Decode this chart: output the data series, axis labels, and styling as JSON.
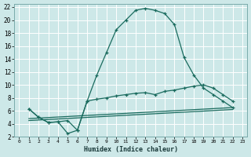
{
  "xlabel": "Humidex (Indice chaleur)",
  "bg_color": "#cde8e8",
  "grid_color": "#ffffff",
  "line_color": "#1a6b5e",
  "xlim": [
    -0.5,
    23.5
  ],
  "ylim": [
    2,
    22.5
  ],
  "xticks": [
    0,
    1,
    2,
    3,
    4,
    5,
    6,
    7,
    8,
    9,
    10,
    11,
    12,
    13,
    14,
    15,
    16,
    17,
    18,
    19,
    20,
    21,
    22,
    23
  ],
  "yticks": [
    2,
    4,
    6,
    8,
    10,
    12,
    14,
    16,
    18,
    20,
    22
  ],
  "line1_x": [
    1,
    2,
    3,
    4,
    5,
    6,
    7,
    8,
    9,
    10,
    11,
    12,
    13,
    14,
    15,
    16,
    17,
    18,
    19,
    20,
    21,
    22
  ],
  "line1_y": [
    6.3,
    5.0,
    4.2,
    4.3,
    4.5,
    3.0,
    7.5,
    11.5,
    15.0,
    18.5,
    20.0,
    21.5,
    21.8,
    21.5,
    21.0,
    19.3,
    14.2,
    11.5,
    9.5,
    8.5,
    7.5,
    6.5
  ],
  "line2_x": [
    1,
    2,
    3,
    4,
    5,
    6,
    7,
    8,
    9,
    10,
    11,
    12,
    13,
    14,
    15,
    16,
    17,
    18,
    19,
    20,
    21,
    22
  ],
  "line2_y": [
    6.3,
    5.0,
    4.2,
    4.3,
    2.5,
    3.0,
    7.5,
    7.8,
    8.0,
    8.3,
    8.5,
    8.7,
    8.8,
    8.5,
    9.0,
    9.2,
    9.5,
    9.8,
    10.0,
    9.5,
    8.5,
    7.5
  ],
  "line3_x": [
    1,
    22
  ],
  "line3_y": [
    4.8,
    6.5
  ],
  "line4_x": [
    1,
    22
  ],
  "line4_y": [
    4.5,
    6.2
  ]
}
